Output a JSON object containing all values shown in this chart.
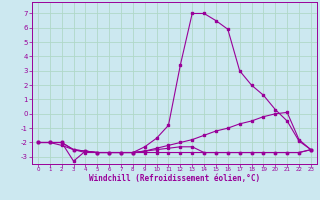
{
  "xlabel": "Windchill (Refroidissement éolien,°C)",
  "xlim": [
    -0.5,
    23.5
  ],
  "ylim": [
    -3.5,
    7.8
  ],
  "yticks": [
    -3,
    -2,
    -1,
    0,
    1,
    2,
    3,
    4,
    5,
    6,
    7
  ],
  "xticks": [
    0,
    1,
    2,
    3,
    4,
    5,
    6,
    7,
    8,
    9,
    10,
    11,
    12,
    13,
    14,
    15,
    16,
    17,
    18,
    19,
    20,
    21,
    22,
    23
  ],
  "background_color": "#cce8f0",
  "grid_color": "#b0d8c8",
  "line_color": "#990099",
  "lines": [
    {
      "x": [
        0,
        1,
        2,
        3,
        4,
        5,
        6,
        7,
        8,
        9,
        10,
        11,
        12,
        13,
        14,
        15,
        16,
        17,
        18,
        19,
        20,
        21,
        22,
        23
      ],
      "y": [
        -2.0,
        -2.0,
        -2.0,
        -3.3,
        -2.6,
        -2.7,
        -2.7,
        -2.7,
        -2.7,
        -2.3,
        -1.7,
        -0.8,
        3.4,
        7.0,
        7.0,
        6.5,
        5.9,
        3.0,
        2.0,
        1.3,
        0.3,
        -0.5,
        -1.9,
        -2.5
      ]
    },
    {
      "x": [
        0,
        1,
        2,
        3,
        4,
        5,
        6,
        7,
        8,
        9,
        10,
        11,
        12,
        13,
        14,
        15,
        16,
        17,
        18,
        19,
        20,
        21,
        22,
        23
      ],
      "y": [
        -2.0,
        -2.0,
        -2.2,
        -2.5,
        -2.6,
        -2.7,
        -2.7,
        -2.7,
        -2.7,
        -2.6,
        -2.5,
        -2.4,
        -2.3,
        -2.3,
        -2.7,
        -2.7,
        -2.7,
        -2.7,
        -2.7,
        -2.7,
        -2.7,
        -2.7,
        -2.7,
        -2.5
      ]
    },
    {
      "x": [
        0,
        1,
        2,
        3,
        4,
        5,
        6,
        7,
        8,
        9,
        10,
        11,
        12,
        13,
        14,
        15,
        16,
        17,
        18,
        19,
        20,
        21,
        22,
        23
      ],
      "y": [
        -2.0,
        -2.0,
        -2.0,
        -2.5,
        -2.6,
        -2.7,
        -2.7,
        -2.7,
        -2.7,
        -2.6,
        -2.4,
        -2.2,
        -2.0,
        -1.8,
        -1.5,
        -1.2,
        -1.0,
        -0.7,
        -0.5,
        -0.2,
        0.0,
        0.1,
        -1.8,
        -2.5
      ]
    },
    {
      "x": [
        0,
        1,
        2,
        3,
        4,
        5,
        6,
        7,
        8,
        9,
        10,
        11,
        12,
        13,
        14,
        15,
        16,
        17,
        18,
        19,
        20,
        21,
        22,
        23
      ],
      "y": [
        -2.0,
        -2.0,
        -2.0,
        -2.5,
        -2.7,
        -2.7,
        -2.7,
        -2.7,
        -2.7,
        -2.7,
        -2.7,
        -2.7,
        -2.7,
        -2.7,
        -2.7,
        -2.7,
        -2.7,
        -2.7,
        -2.7,
        -2.7,
        -2.7,
        -2.7,
        -2.7,
        -2.5
      ]
    }
  ]
}
